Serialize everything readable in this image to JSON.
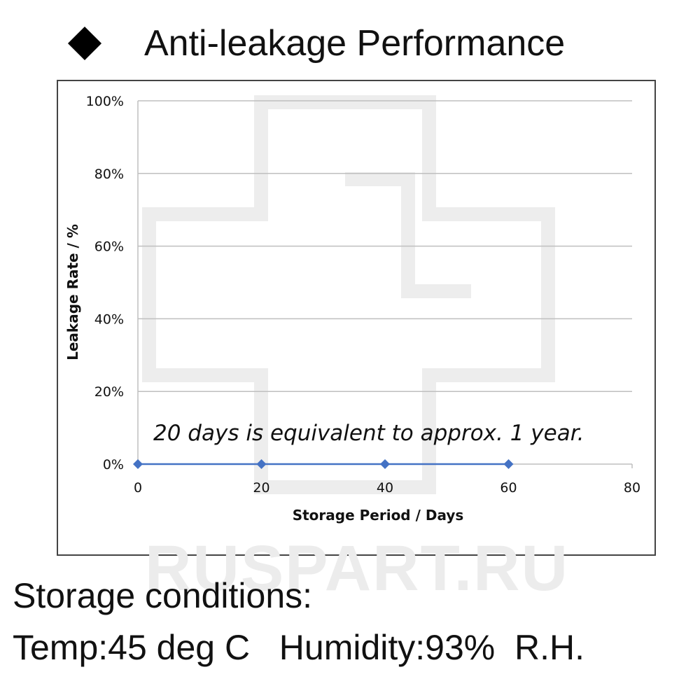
{
  "heading": {
    "title": "Anti-leakage Performance"
  },
  "chart_data": {
    "type": "line",
    "xlabel": "Storage Period / Days",
    "ylabel": "Leakage Rate / %",
    "xlim": [
      0,
      80
    ],
    "ylim": [
      0,
      100
    ],
    "x_ticks": [
      0,
      20,
      40,
      60,
      80
    ],
    "y_ticks": [
      "0%",
      "20%",
      "40%",
      "60%",
      "80%",
      "100%"
    ],
    "y_tick_values": [
      0,
      20,
      40,
      60,
      80,
      100
    ],
    "grid": true,
    "series": [
      {
        "x": [
          0,
          20,
          40,
          60
        ],
        "y": [
          0,
          0,
          0,
          0
        ],
        "color": "#4472c4",
        "marker": "diamond"
      }
    ],
    "annotation": "20 days is equivalent to approx. 1 year."
  },
  "watermark": "RUSPART.RU",
  "conditions": {
    "title": "Storage conditions:",
    "temp": "Temp:45 deg C",
    "humidity": "Humidity:93%",
    "rh": "R.H."
  }
}
